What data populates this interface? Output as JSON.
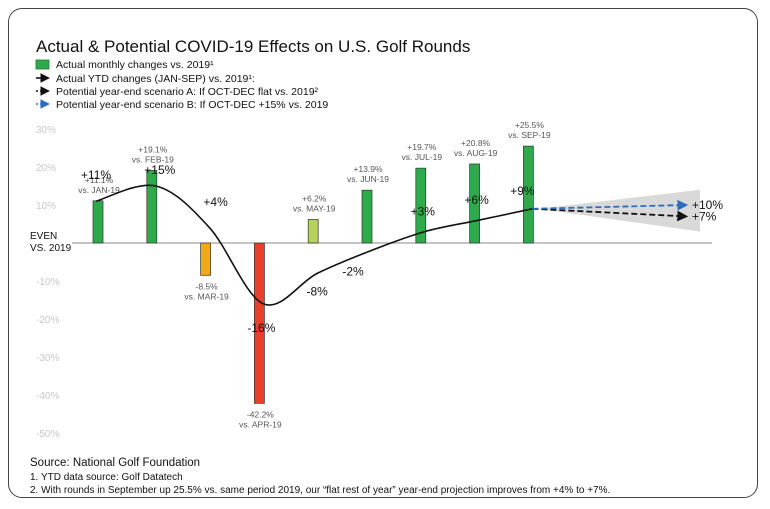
{
  "chart_data": {
    "type": "bar",
    "title": "Actual & Potential COVID-19 Effects on U.S. Golf Rounds",
    "ylim": [
      -50,
      30
    ],
    "y_ticks": [
      "30%",
      "20%",
      "10%",
      "EVEN VS. 2019",
      "-10%",
      "-20%",
      "-30%",
      "-40%",
      "-50%"
    ],
    "zero_label_line1": "EVEN",
    "zero_label_line2": "VS. 2019",
    "legend": [
      {
        "text": "Actual monthly changes vs. 2019¹",
        "marker": "green-box"
      },
      {
        "text": "Actual YTD changes (JAN-SEP) vs. 2019¹:",
        "marker": "solid-arrow"
      },
      {
        "text": "Potential year-end scenario A: If OCT-DEC flat vs. 2019²",
        "marker": "dashed-black-arrow"
      },
      {
        "text": "Potential year-end scenario B: If OCT-DEC +15% vs. 2019",
        "marker": "dashed-blue-arrow"
      }
    ],
    "monthly": [
      {
        "month": "JAN",
        "value": 11.1,
        "label1": "+11.1%",
        "label2": "vs. JAN-19",
        "color": "#2eaa4a"
      },
      {
        "month": "FEB",
        "value": 19.1,
        "label1": "+19.1%",
        "label2": "vs. FEB-19",
        "color": "#2eaa4a"
      },
      {
        "month": "MAR",
        "value": -8.5,
        "label1": "-8.5%",
        "label2": "vs. MAR-19",
        "color": "#f0a81e"
      },
      {
        "month": "APR",
        "value": -42.2,
        "label1": "-42.2%",
        "label2": "vs. APR-19",
        "color": "#e8402b"
      },
      {
        "month": "MAY",
        "value": 6.2,
        "label1": "+6.2%",
        "label2": "vs. MAY-19",
        "color": "#b5d15f"
      },
      {
        "month": "JUN",
        "value": 13.9,
        "label1": "+13.9%",
        "label2": "vs. JUN-19",
        "color": "#2eaa4a"
      },
      {
        "month": "JUL",
        "value": 19.7,
        "label1": "+19.7%",
        "label2": "vs. JUL-19",
        "color": "#2eaa4a"
      },
      {
        "month": "AUG",
        "value": 20.8,
        "label1": "+20.8%",
        "label2": "vs. AUG-19",
        "color": "#2eaa4a"
      },
      {
        "month": "SEP",
        "value": 25.5,
        "label1": "+25.5%",
        "label2": "vs. SEP-19",
        "color": "#2eaa4a"
      }
    ],
    "ytd": [
      {
        "month": "JAN",
        "value": 11,
        "label": "+11%"
      },
      {
        "month": "FEB",
        "value": 15,
        "label": "+15%"
      },
      {
        "month": "MAR",
        "value": 4,
        "label": "+4%"
      },
      {
        "month": "APR",
        "value": -16,
        "label": "-16%"
      },
      {
        "month": "MAY",
        "value": -8,
        "label": "-8%"
      },
      {
        "month": "JUN",
        "value": -2,
        "label": "-2%"
      },
      {
        "month": "JUL",
        "value": 3,
        "label": "+3%"
      },
      {
        "month": "AUG",
        "value": 6,
        "label": "+6%"
      },
      {
        "month": "SEP",
        "value": 9,
        "label": "+9%"
      }
    ],
    "scenarios": [
      {
        "name": "Potential year-end scenario A",
        "end_value": 7,
        "label": "+7%",
        "color": "#111111"
      },
      {
        "name": "Potential year-end scenario B",
        "end_value": 10,
        "label": "+10%",
        "color": "#2a6ebd"
      }
    ]
  },
  "footnotes": {
    "source": "Source: National Golf Foundation",
    "note1": "1. YTD data source: Golf Datatech",
    "note2": "2. With rounds in September up 25.5% vs. same period 2019, our “flat rest of year” year-end projection improves from +4% to +7%."
  }
}
